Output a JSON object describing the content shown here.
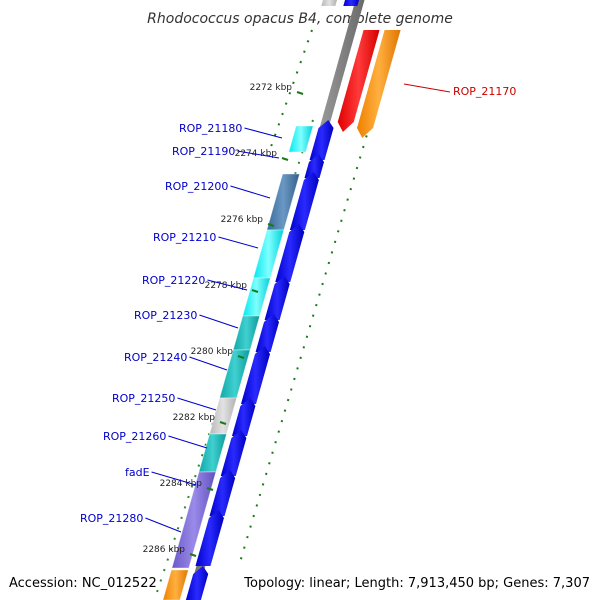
{
  "title": "Rhodococcus opacus B4, complete genome",
  "footer": {
    "accession": "Accession: NC_012522",
    "topology": "Topology: linear; Length: 7,913,450 bp; Genes: 7,307"
  },
  "ticks": [
    "2272 kbp",
    "2274 kbp",
    "2276 kbp",
    "2278 kbp",
    "2280 kbp",
    "2282 kbp",
    "2284 kbp",
    "2286 kbp"
  ],
  "genes_left": [
    "ROP_21180",
    "ROP_21190",
    "ROP_21200",
    "ROP_21210",
    "ROP_21220",
    "ROP_21230",
    "ROP_21240",
    "ROP_21250",
    "ROP_21260",
    "fadE",
    "ROP_21280"
  ],
  "genes_right": [
    "ROP_21170"
  ],
  "colors": {
    "backbone": "#8c8c8c",
    "cds": "#0000e6",
    "highlight": "#ff0000",
    "orange": "#ff8c00",
    "tick": "#1a7a1a",
    "label_left": "#0000cc",
    "label_right": "#cc0000"
  }
}
